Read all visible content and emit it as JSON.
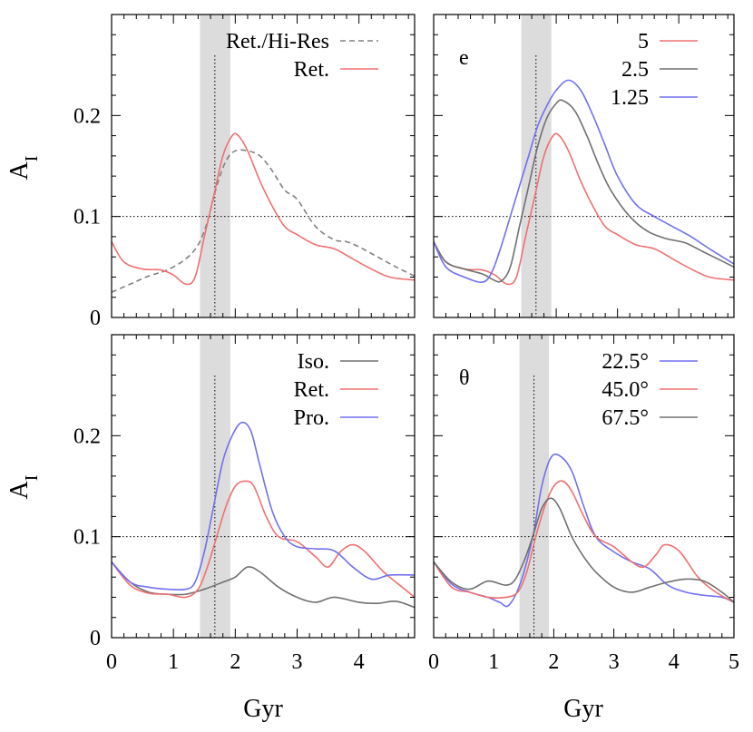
{
  "chart_data": [
    {
      "type": "line",
      "title": "",
      "xlabel": "",
      "ylabel": "A_I",
      "xlim": [
        0,
        4.9
      ],
      "ylim": [
        0,
        0.3
      ],
      "yticks": [
        "0",
        "0.1",
        "0.2"
      ],
      "xticks": [],
      "shaded_band": [
        1.43,
        1.92
      ],
      "vline": 1.67,
      "hline": 0.1,
      "corner_label": "",
      "legend_position": "top-right",
      "series": [
        {
          "name": "Ret./Hi-Res",
          "color": "#808080",
          "dashed": true,
          "x": [
            0,
            0.3,
            0.6,
            0.9,
            1.2,
            1.4,
            1.55,
            1.7,
            1.85,
            2.0,
            2.2,
            2.4,
            2.6,
            2.8,
            3.0,
            3.3,
            3.6,
            3.8,
            4.0,
            4.3,
            4.6,
            4.9
          ],
          "y": [
            0.025,
            0.033,
            0.041,
            0.047,
            0.058,
            0.072,
            0.095,
            0.13,
            0.155,
            0.165,
            0.165,
            0.16,
            0.145,
            0.126,
            0.117,
            0.09,
            0.077,
            0.075,
            0.07,
            0.06,
            0.05,
            0.041
          ]
        },
        {
          "name": "Ret.",
          "color": "#f07070",
          "dashed": false,
          "x": [
            0,
            0.2,
            0.5,
            0.8,
            1.0,
            1.2,
            1.35,
            1.5,
            1.65,
            1.8,
            1.95,
            2.05,
            2.2,
            2.4,
            2.6,
            2.8,
            3.0,
            3.3,
            3.6,
            3.9,
            4.2,
            4.5,
            4.9
          ],
          "y": [
            0.075,
            0.055,
            0.048,
            0.047,
            0.042,
            0.033,
            0.04,
            0.08,
            0.12,
            0.16,
            0.18,
            0.18,
            0.165,
            0.135,
            0.11,
            0.09,
            0.082,
            0.072,
            0.068,
            0.058,
            0.048,
            0.04,
            0.037
          ]
        }
      ]
    },
    {
      "type": "line",
      "title": "",
      "xlabel": "",
      "ylabel": "",
      "xlim": [
        0,
        4.9
      ],
      "ylim": [
        0,
        0.3
      ],
      "yticks": [],
      "xticks": [],
      "shaded_band": [
        1.43,
        1.92
      ],
      "vline": 1.67,
      "hline": 0.1,
      "corner_label": "e",
      "legend_position": "top-right",
      "series": [
        {
          "name": "5",
          "color": "#f07070",
          "dashed": false,
          "x": [
            0,
            0.2,
            0.5,
            0.8,
            1.0,
            1.2,
            1.35,
            1.5,
            1.65,
            1.8,
            1.95,
            2.05,
            2.2,
            2.4,
            2.6,
            2.8,
            3.0,
            3.3,
            3.6,
            3.9,
            4.2,
            4.5,
            4.9
          ],
          "y": [
            0.075,
            0.055,
            0.048,
            0.047,
            0.042,
            0.033,
            0.04,
            0.08,
            0.12,
            0.16,
            0.18,
            0.18,
            0.165,
            0.135,
            0.11,
            0.09,
            0.082,
            0.072,
            0.068,
            0.058,
            0.048,
            0.04,
            0.037
          ]
        },
        {
          "name": "2.5",
          "color": "#707070",
          "dashed": false,
          "x": [
            0,
            0.2,
            0.5,
            0.8,
            0.95,
            1.1,
            1.25,
            1.4,
            1.55,
            1.7,
            1.85,
            2.0,
            2.1,
            2.3,
            2.5,
            2.7,
            2.9,
            3.2,
            3.5,
            3.8,
            4.1,
            4.4,
            4.9
          ],
          "y": [
            0.075,
            0.055,
            0.048,
            0.043,
            0.038,
            0.036,
            0.05,
            0.09,
            0.13,
            0.17,
            0.198,
            0.212,
            0.215,
            0.205,
            0.18,
            0.15,
            0.125,
            0.1,
            0.085,
            0.078,
            0.074,
            0.065,
            0.05
          ]
        },
        {
          "name": "1.25",
          "color": "#7070f0",
          "dashed": false,
          "x": [
            0,
            0.2,
            0.5,
            0.8,
            0.95,
            1.1,
            1.25,
            1.4,
            1.55,
            1.7,
            1.85,
            2.0,
            2.2,
            2.4,
            2.6,
            2.8,
            3.0,
            3.3,
            3.6,
            3.9,
            4.2,
            4.5,
            4.9
          ],
          "y": [
            0.075,
            0.05,
            0.04,
            0.035,
            0.045,
            0.07,
            0.1,
            0.13,
            0.16,
            0.19,
            0.21,
            0.225,
            0.235,
            0.225,
            0.2,
            0.17,
            0.14,
            0.112,
            0.1,
            0.09,
            0.08,
            0.068,
            0.053
          ]
        }
      ]
    },
    {
      "type": "line",
      "title": "",
      "xlabel": "Gyr",
      "ylabel": "A_I",
      "xlim": [
        0,
        4.9
      ],
      "ylim": [
        0,
        0.3
      ],
      "yticks": [
        "0",
        "0.1",
        "0.2"
      ],
      "xticks": [
        "0",
        "1",
        "2",
        "3",
        "4"
      ],
      "shaded_band": [
        1.43,
        1.92
      ],
      "vline": 1.67,
      "hline": 0.1,
      "corner_label": "",
      "legend_position": "top-right",
      "series": [
        {
          "name": "Iso.",
          "color": "#707070",
          "dashed": false,
          "x": [
            0,
            0.3,
            0.6,
            0.9,
            1.2,
            1.5,
            1.8,
            2.0,
            2.2,
            2.4,
            2.7,
            3.0,
            3.3,
            3.6,
            4.0,
            4.3,
            4.6,
            4.9
          ],
          "y": [
            0.075,
            0.055,
            0.045,
            0.043,
            0.043,
            0.048,
            0.055,
            0.06,
            0.07,
            0.065,
            0.05,
            0.04,
            0.035,
            0.04,
            0.035,
            0.034,
            0.036,
            0.03
          ]
        },
        {
          "name": "Ret.",
          "color": "#f07070",
          "dashed": false,
          "x": [
            0,
            0.3,
            0.6,
            0.9,
            1.2,
            1.4,
            1.55,
            1.7,
            1.85,
            2.0,
            2.15,
            2.3,
            2.5,
            2.7,
            3.0,
            3.3,
            3.5,
            3.7,
            3.9,
            4.1,
            4.4,
            4.7,
            4.9
          ],
          "y": [
            0.075,
            0.052,
            0.044,
            0.043,
            0.04,
            0.048,
            0.07,
            0.1,
            0.13,
            0.15,
            0.155,
            0.15,
            0.12,
            0.1,
            0.095,
            0.08,
            0.07,
            0.085,
            0.092,
            0.085,
            0.065,
            0.05,
            0.04
          ]
        },
        {
          "name": "Pro.",
          "color": "#7070f0",
          "dashed": false,
          "x": [
            0,
            0.3,
            0.6,
            0.9,
            1.2,
            1.35,
            1.5,
            1.65,
            1.8,
            1.95,
            2.1,
            2.25,
            2.4,
            2.6,
            2.8,
            3.0,
            3.3,
            3.6,
            3.9,
            4.2,
            4.5,
            4.9
          ],
          "y": [
            0.075,
            0.055,
            0.05,
            0.048,
            0.048,
            0.055,
            0.085,
            0.13,
            0.175,
            0.2,
            0.213,
            0.205,
            0.17,
            0.125,
            0.1,
            0.09,
            0.088,
            0.086,
            0.07,
            0.058,
            0.062,
            0.062
          ]
        }
      ]
    },
    {
      "type": "line",
      "title": "",
      "xlabel": "Gyr",
      "ylabel": "",
      "xlim": [
        0,
        5
      ],
      "ylim": [
        0,
        0.3
      ],
      "yticks": [],
      "xticks": [
        "0",
        "1",
        "2",
        "3",
        "4",
        "5"
      ],
      "shaded_band": [
        1.43,
        1.92
      ],
      "vline": 1.67,
      "hline": 0.1,
      "corner_label": "θ",
      "legend_position": "top-right",
      "series": [
        {
          "name": "22.5°",
          "color": "#7070f0",
          "dashed": false,
          "x": [
            0,
            0.3,
            0.6,
            0.9,
            1.1,
            1.25,
            1.45,
            1.65,
            1.8,
            1.95,
            2.1,
            2.3,
            2.5,
            2.7,
            3.0,
            3.3,
            3.6,
            3.9,
            4.2,
            4.5,
            4.8,
            5.0
          ],
          "y": [
            0.075,
            0.053,
            0.045,
            0.04,
            0.035,
            0.032,
            0.055,
            0.1,
            0.15,
            0.178,
            0.18,
            0.165,
            0.13,
            0.1,
            0.085,
            0.075,
            0.068,
            0.052,
            0.045,
            0.042,
            0.04,
            0.035
          ]
        },
        {
          "name": "45.0°",
          "color": "#f07070",
          "dashed": false,
          "x": [
            0,
            0.3,
            0.6,
            0.9,
            1.2,
            1.4,
            1.55,
            1.7,
            1.85,
            2.0,
            2.15,
            2.3,
            2.5,
            2.7,
            3.0,
            3.3,
            3.5,
            3.7,
            3.85,
            4.1,
            4.4,
            4.7,
            5.0
          ],
          "y": [
            0.075,
            0.05,
            0.045,
            0.04,
            0.04,
            0.045,
            0.065,
            0.1,
            0.13,
            0.15,
            0.155,
            0.145,
            0.12,
            0.1,
            0.09,
            0.075,
            0.07,
            0.082,
            0.092,
            0.085,
            0.06,
            0.045,
            0.035
          ]
        },
        {
          "name": "67.5°",
          "color": "#707070",
          "dashed": false,
          "x": [
            0,
            0.3,
            0.6,
            0.9,
            1.2,
            1.35,
            1.5,
            1.65,
            1.8,
            1.95,
            2.1,
            2.3,
            2.5,
            2.7,
            3.0,
            3.3,
            3.6,
            3.9,
            4.2,
            4.5,
            4.8,
            5.0
          ],
          "y": [
            0.075,
            0.055,
            0.048,
            0.056,
            0.052,
            0.057,
            0.075,
            0.1,
            0.128,
            0.138,
            0.128,
            0.1,
            0.08,
            0.065,
            0.05,
            0.045,
            0.05,
            0.055,
            0.058,
            0.056,
            0.045,
            0.035
          ]
        }
      ]
    }
  ]
}
